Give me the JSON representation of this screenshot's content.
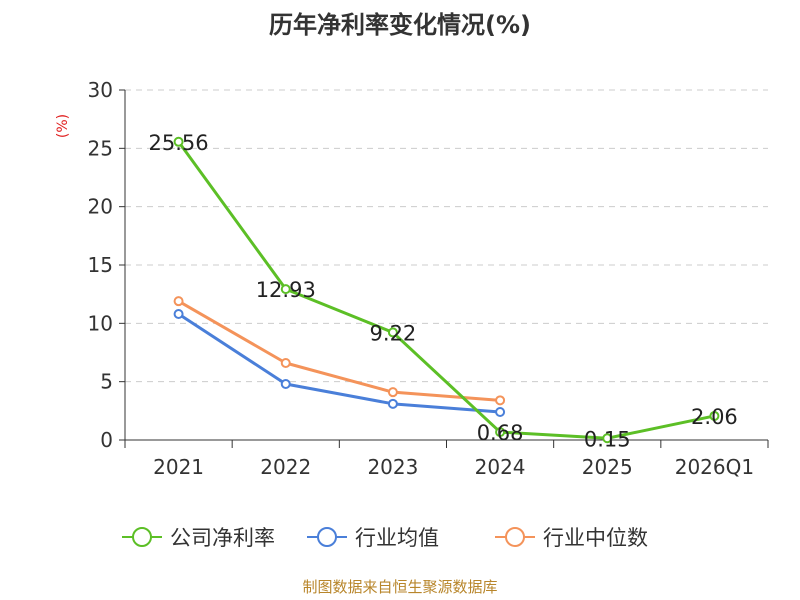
{
  "chart_data": {
    "type": "line",
    "title": "历年净利率变化情况(%)",
    "ylabel": "(%)",
    "xlabel": "",
    "categories": [
      "2021",
      "2022",
      "2023",
      "2024",
      "2025",
      "2026Q1"
    ],
    "ylim": [
      0,
      30
    ],
    "yticks": [
      0,
      5,
      10,
      15,
      20,
      25,
      30
    ],
    "grid": true,
    "legend_position": "bottom",
    "series": [
      {
        "name": "公司净利率",
        "color": "#5cbf26",
        "values": [
          25.56,
          12.93,
          9.22,
          0.68,
          0.15,
          2.06
        ],
        "labels": [
          "25.56",
          "12.93",
          "9.22",
          "0.68",
          "0.15",
          "2.06"
        ]
      },
      {
        "name": "行业均值",
        "color": "#4a7fd9",
        "values": [
          10.8,
          4.8,
          3.1,
          2.4,
          null,
          null
        ]
      },
      {
        "name": "行业中位数",
        "color": "#f4935a",
        "values": [
          11.9,
          6.6,
          4.1,
          3.4,
          null,
          null
        ]
      }
    ],
    "source": "制图数据来自恒生聚源数据库"
  }
}
